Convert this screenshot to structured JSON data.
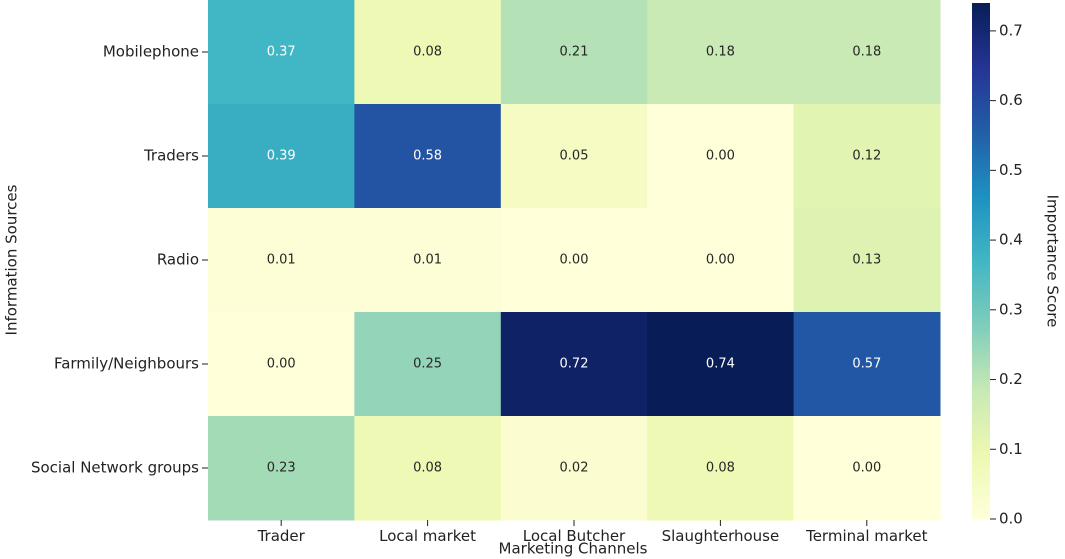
{
  "chart_data": {
    "type": "heatmap",
    "xlabel": "Marketing Channels",
    "ylabel": "Information Sources",
    "colorbar_label": "Importance Score",
    "categories": [
      "Trader",
      "Local market",
      "Local Butcher",
      "Slaughterhouse",
      "Terminal market"
    ],
    "rows": [
      "Mobilephone",
      "Traders",
      "Radio",
      "Farmily/Neighbours",
      "Social Network groups"
    ],
    "values": [
      [
        0.37,
        0.08,
        0.21,
        0.18,
        0.18
      ],
      [
        0.39,
        0.58,
        0.05,
        0,
        0.12
      ],
      [
        0.01,
        0.01,
        0,
        0,
        0.13
      ],
      [
        0,
        0.25,
        0.72,
        0.74,
        0.57
      ],
      [
        0.23,
        0.08,
        0.02,
        0.08,
        0
      ]
    ],
    "value_labels": [
      [
        "0.37",
        "0.08",
        "0.21",
        "0.18",
        "0.18"
      ],
      [
        "0.39",
        "0.58",
        "0.05",
        "0.00",
        "0.12"
      ],
      [
        "0.01",
        "0.01",
        "0.00",
        "0.00",
        "0.13"
      ],
      [
        "0.00",
        "0.25",
        "0.72",
        "0.74",
        "0.57"
      ],
      [
        "0.23",
        "0.08",
        "0.02",
        "0.08",
        "0.00"
      ]
    ],
    "colorscale": [
      "#ffffd9",
      "#edf8b1",
      "#c7e9b4",
      "#7fcdbb",
      "#41b6c4",
      "#1d91c0",
      "#225ea8",
      "#253494",
      "#081d58"
    ],
    "clim": [
      0,
      0.74
    ],
    "cticks": [
      {
        "value": 0,
        "label": "0.0"
      },
      0.1,
      0.2,
      0.3,
      0.4,
      0.5,
      0.6,
      0.7
    ]
  }
}
